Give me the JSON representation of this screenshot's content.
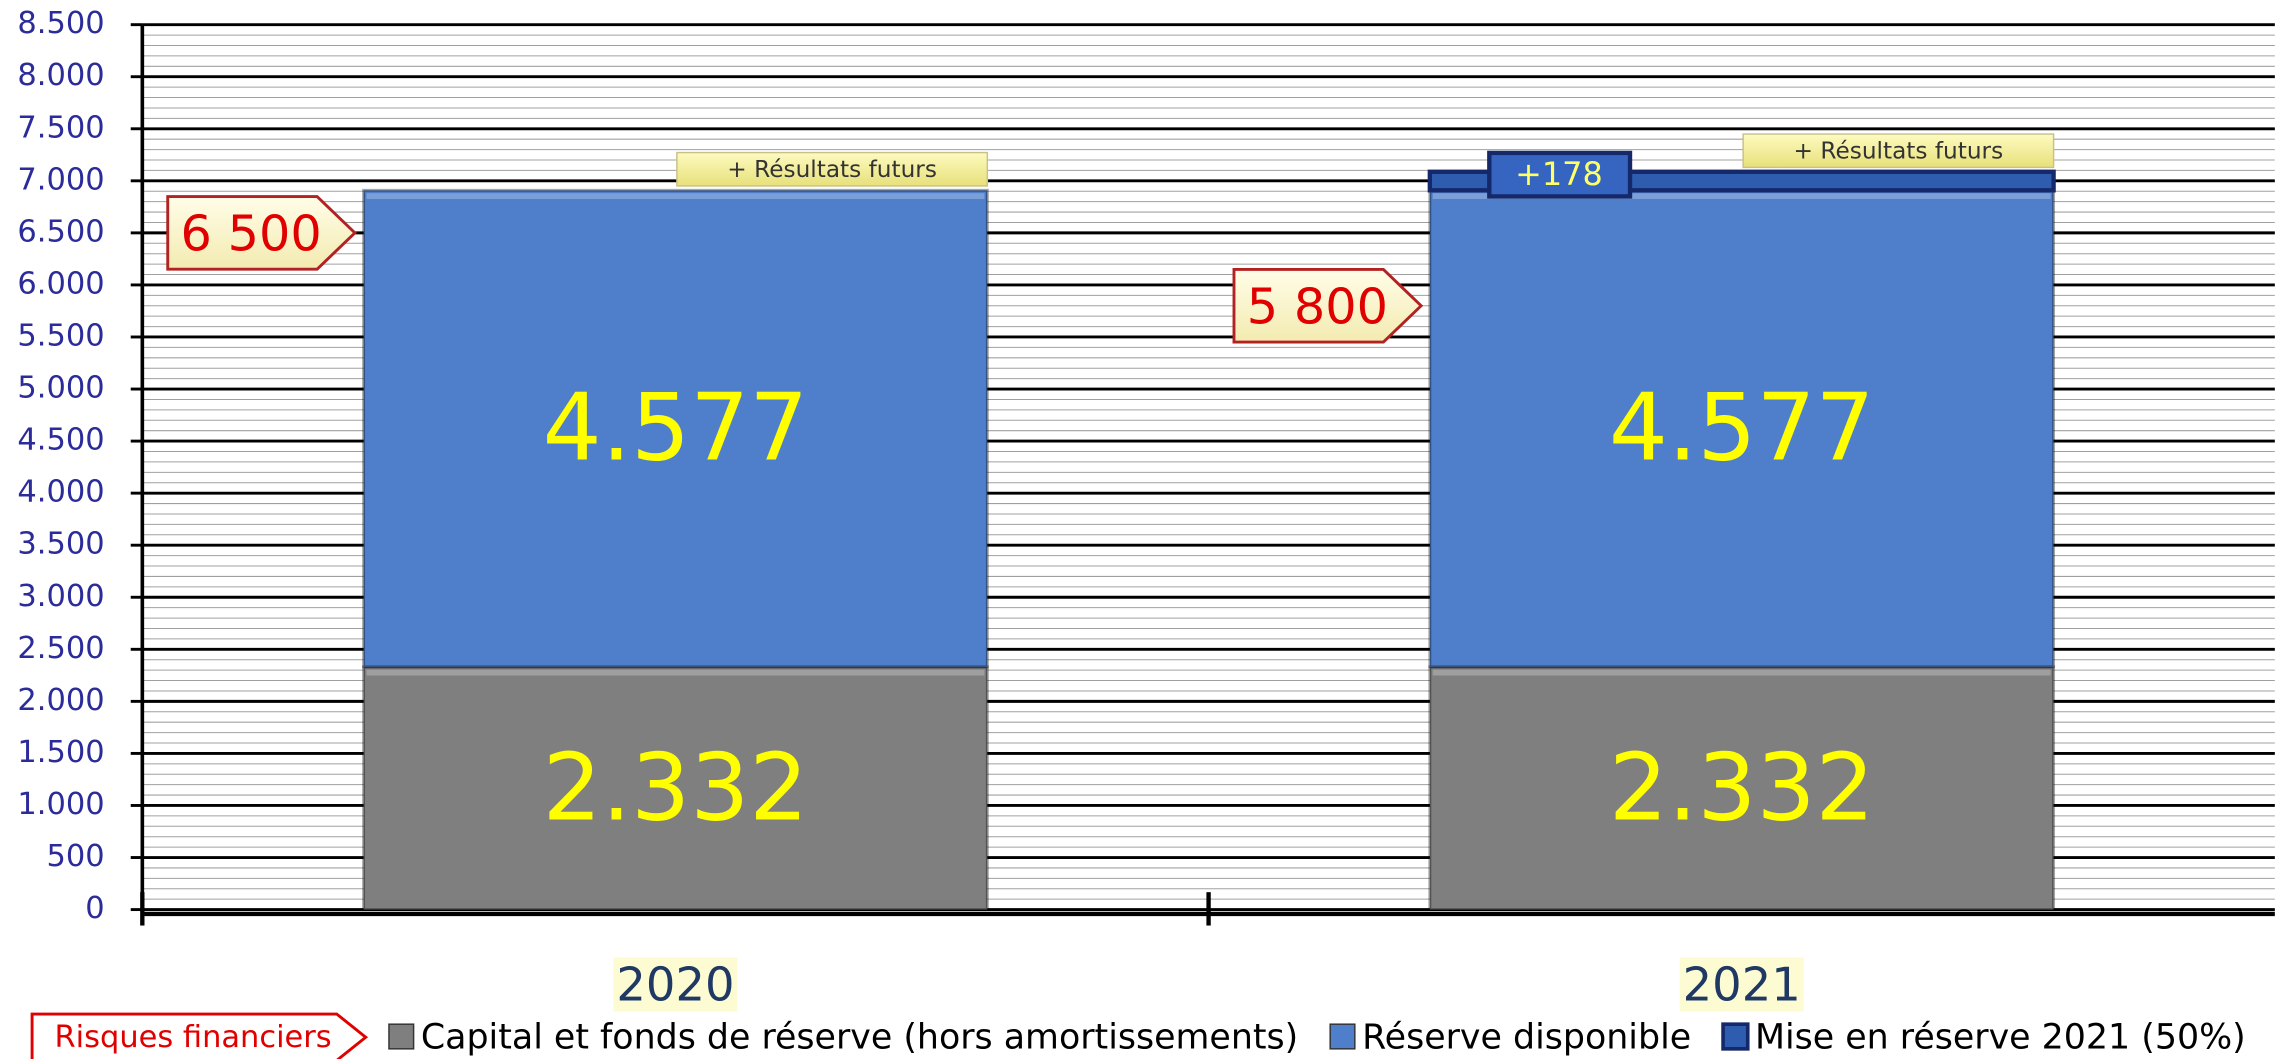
{
  "chart_data": {
    "type": "bar",
    "stacked": true,
    "categories": [
      "2020",
      "2021"
    ],
    "series": [
      {
        "name": "Capital et fonds de réserve (hors amortissements)",
        "color": "#7f7f7f",
        "values": [
          2332,
          2332
        ],
        "value_labels": [
          "2.332",
          "2.332"
        ]
      },
      {
        "name": "Réserve disponible",
        "color": "#4f7fcb",
        "values": [
          4577,
          4577
        ],
        "value_labels": [
          "4.577",
          "4.577"
        ]
      },
      {
        "name": "Mise en réserve 2021 (50%)",
        "color": "#2e5db0",
        "values": [
          null,
          178
        ],
        "value_labels": [
          null,
          "+178"
        ]
      }
    ],
    "ylim": [
      0,
      8500
    ],
    "yticks": [
      0,
      500,
      {
        "value": 1000,
        "label": "1.000"
      },
      {
        "value": 1500,
        "label": "1.500"
      },
      {
        "value": 2000,
        "label": "2.000"
      },
      {
        "value": 2500,
        "label": "2.500"
      },
      {
        "value": 3000,
        "label": "3.000"
      },
      {
        "value": 3500,
        "label": "3.500"
      },
      {
        "value": 4000,
        "label": "4.000"
      },
      {
        "value": 4500,
        "label": "4.500"
      },
      {
        "value": 5000,
        "label": "5.000"
      },
      {
        "value": 5500,
        "label": "5.500"
      },
      {
        "value": 6000,
        "label": "6.000"
      },
      {
        "value": 6500,
        "label": "6.500"
      },
      {
        "value": 7000,
        "label": "7.000"
      },
      {
        "value": 7500,
        "label": "7.500"
      },
      {
        "value": 8000,
        "label": "8.000"
      },
      {
        "value": 8500,
        "label": "8.500"
      }
    ],
    "grid": true,
    "annotations": [
      {
        "value": 6500,
        "label": "6 500"
      },
      {
        "value": 5800,
        "label": "5 800"
      }
    ],
    "notes": [
      "+ Résultats futurs",
      "+ Résultats futurs"
    ],
    "callout_legend": "Risques financiers"
  }
}
